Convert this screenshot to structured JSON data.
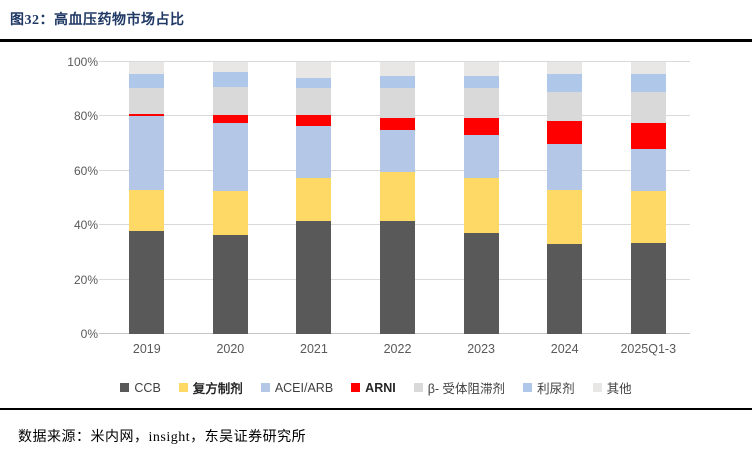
{
  "header": {
    "title": "图32：高血压药物市场占比"
  },
  "footer": {
    "source": "数据来源：米内网，insight，东吴证券研究所"
  },
  "colors": {
    "title": "#1F3864",
    "rule": "#000000",
    "gridline": "#D9D9D9",
    "axis_text": "#595959"
  },
  "chart_data": {
    "type": "bar",
    "stacked": true,
    "title": "高血压药物市场占比",
    "xlabel": "",
    "ylabel": "",
    "ylim": [
      0,
      100
    ],
    "grid": true,
    "legend_position": "bottom",
    "y_ticks": [
      "0%",
      "20%",
      "40%",
      "60%",
      "80%",
      "100%"
    ],
    "categories": [
      "2019",
      "2020",
      "2021",
      "2022",
      "2023",
      "2024",
      "2025Q1-3"
    ],
    "series": [
      {
        "name": "CCB",
        "color": "#595959",
        "bold": false,
        "values": [
          38,
          36.5,
          41.5,
          41.5,
          37,
          33,
          33.5
        ]
      },
      {
        "name": "复方制剂",
        "color": "#FFD966",
        "bold": true,
        "values": [
          15,
          16,
          16,
          18,
          20.5,
          20,
          19
        ]
      },
      {
        "name": "ACEI/ARB",
        "color": "#B4C7E7",
        "bold": false,
        "values": [
          27,
          25,
          19,
          15.5,
          15.5,
          17,
          15.5
        ]
      },
      {
        "name": "ARNI",
        "color": "#FF0000",
        "bold": true,
        "values": [
          1,
          3,
          4,
          4.5,
          6.5,
          8.5,
          9.5
        ]
      },
      {
        "name": "β- 受体阻滞剂",
        "color": "#D9D9D9",
        "bold": false,
        "values": [
          9.5,
          10.5,
          10,
          11,
          11,
          10.5,
          11.5
        ]
      },
      {
        "name": "利尿剂",
        "color": "#AFC7E9",
        "bold": false,
        "values": [
          5,
          5.5,
          3.5,
          4.5,
          4.5,
          6.5,
          6.5
        ]
      },
      {
        "name": "其他",
        "color": "#E8E7E6",
        "bold": false,
        "values": [
          4.5,
          3.5,
          6,
          5,
          5,
          4.5,
          4.5
        ]
      }
    ]
  }
}
